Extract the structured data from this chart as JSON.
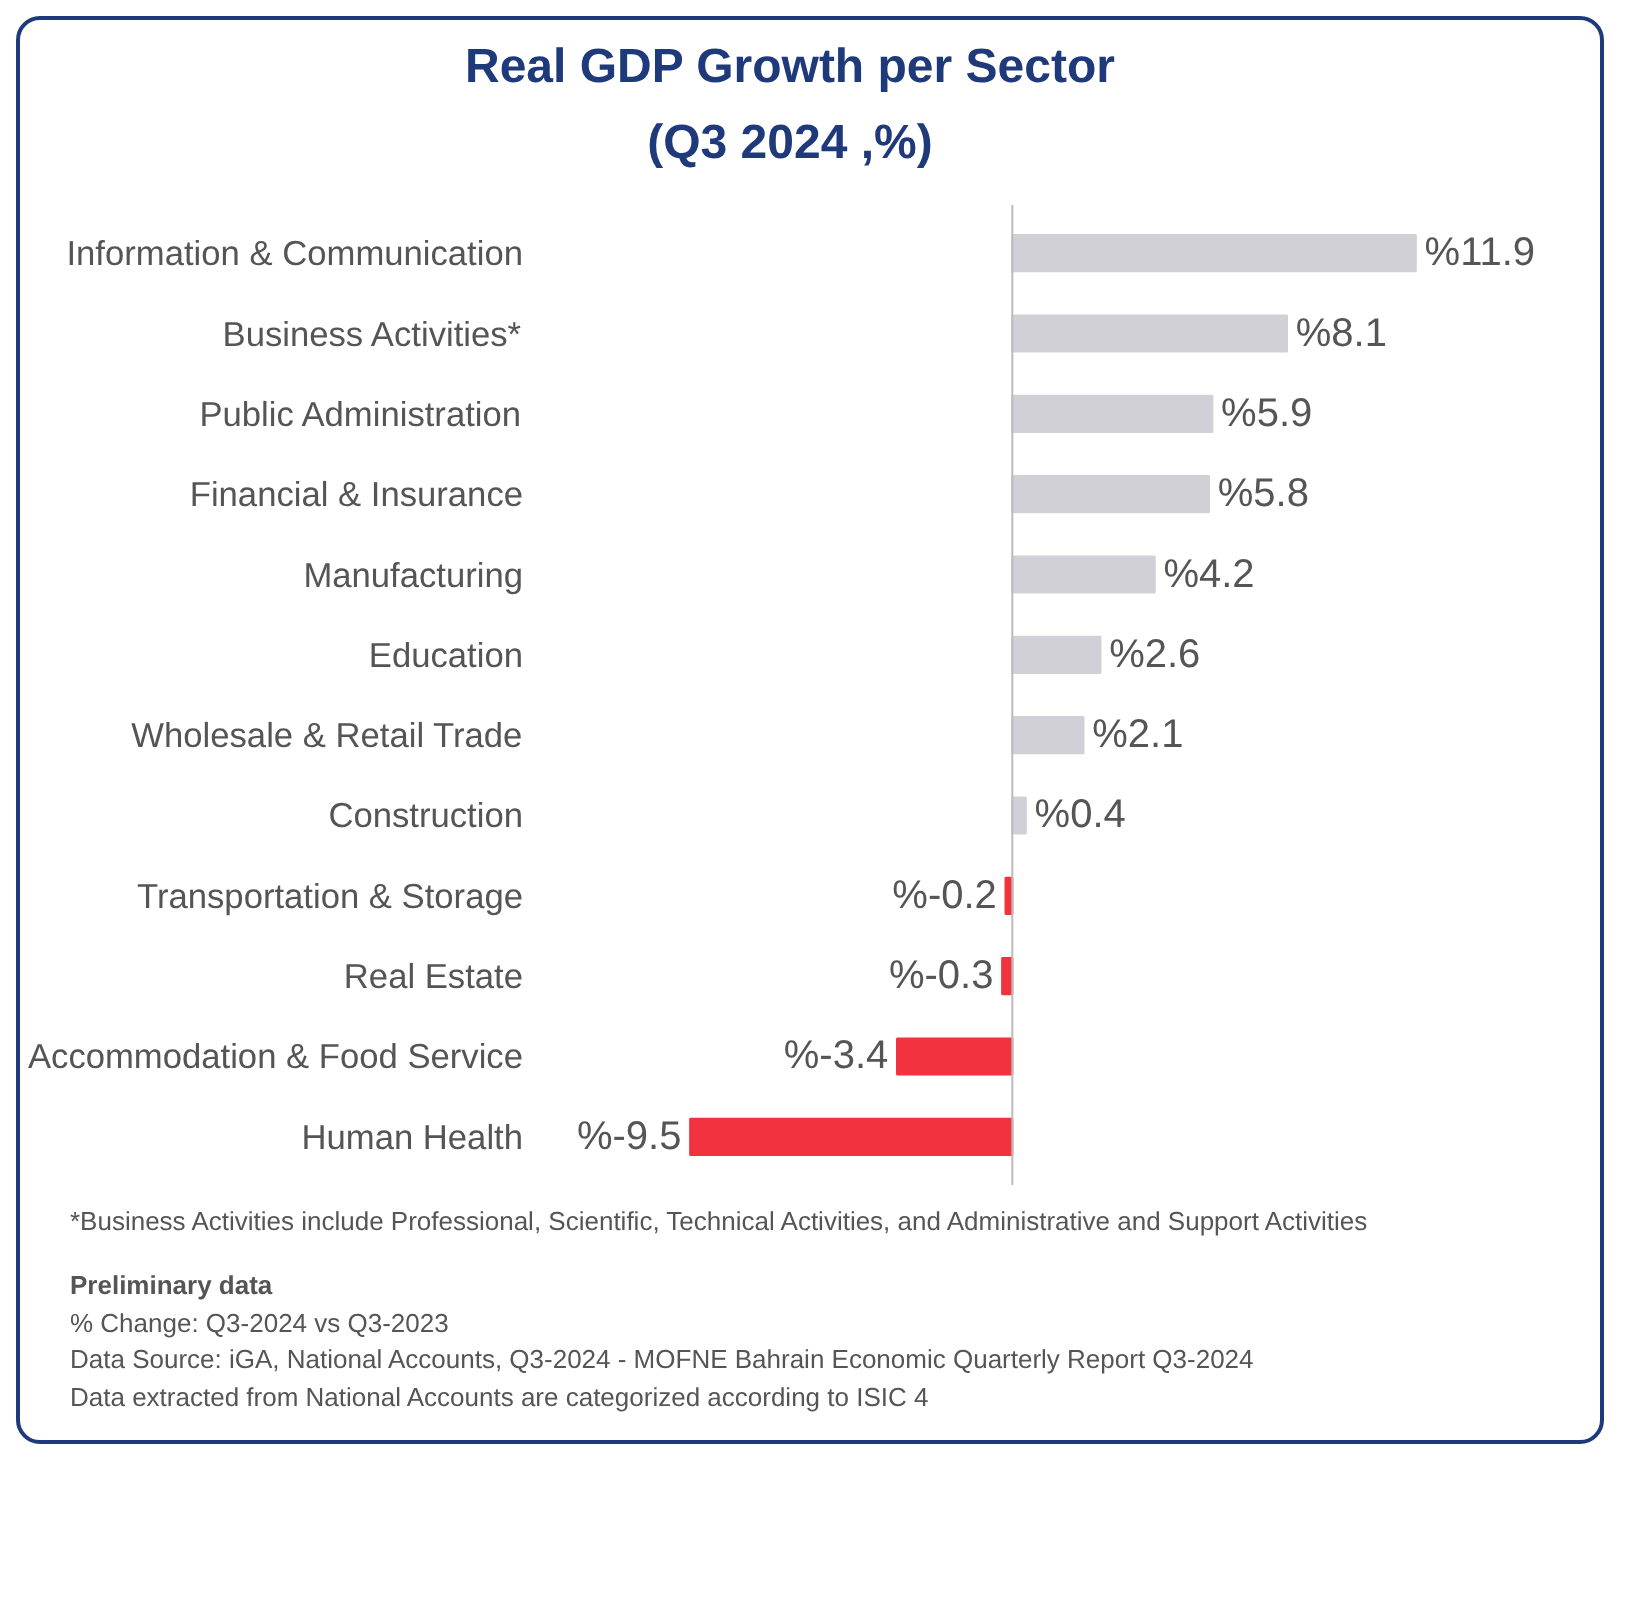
{
  "chart_data": {
    "type": "bar",
    "orientation": "horizontal",
    "title": "Real GDP Growth per Sector",
    "subtitle": "(Q3 2024 ,%)",
    "categories": [
      "Information & Communication",
      "Business Activities*",
      "Public Administration",
      "Financial & Insurance",
      "Manufacturing",
      "Education",
      "Wholesale & Retail Trade",
      "Construction",
      "Transportation & Storage",
      "Real Estate",
      "Accommodation & Food Service",
      "Human Health"
    ],
    "values": [
      11.9,
      8.1,
      5.9,
      5.8,
      4.2,
      2.6,
      2.1,
      0.4,
      -0.2,
      -0.3,
      -3.4,
      -9.5
    ],
    "colors": [
      "#d1d0d6",
      "#d1d0d6",
      "#d1d0d6",
      "#d1d0d6",
      "#d1d0d6",
      "#d1d0d6",
      "#d1d0d6",
      "#d1d0d6",
      "#f2323f",
      "#f2323f",
      "#f2323f",
      "#f2323f"
    ],
    "value_labels": [
      "%11.9",
      "%8.1",
      "%5.9",
      "%5.8",
      "%4.2",
      "%2.6",
      "%2.1",
      "%0.4",
      "%-0.2",
      "%-0.3",
      "%-3.4",
      "%-9.5"
    ],
    "grid": false,
    "annotations": [
      "*Business Activities include Professional, Scientific, Technical Activities, and Administrative and Support Activities",
      "Preliminary data",
      "% Change: Q3-2024 vs Q3-2023",
      "Data Source: iGA, National Accounts, Q3-2024 - MOFNE Bahrain Economic Quarterly Report Q3-2024",
      "Data extracted from National Accounts are categorized according to ISIC 4"
    ]
  }
}
